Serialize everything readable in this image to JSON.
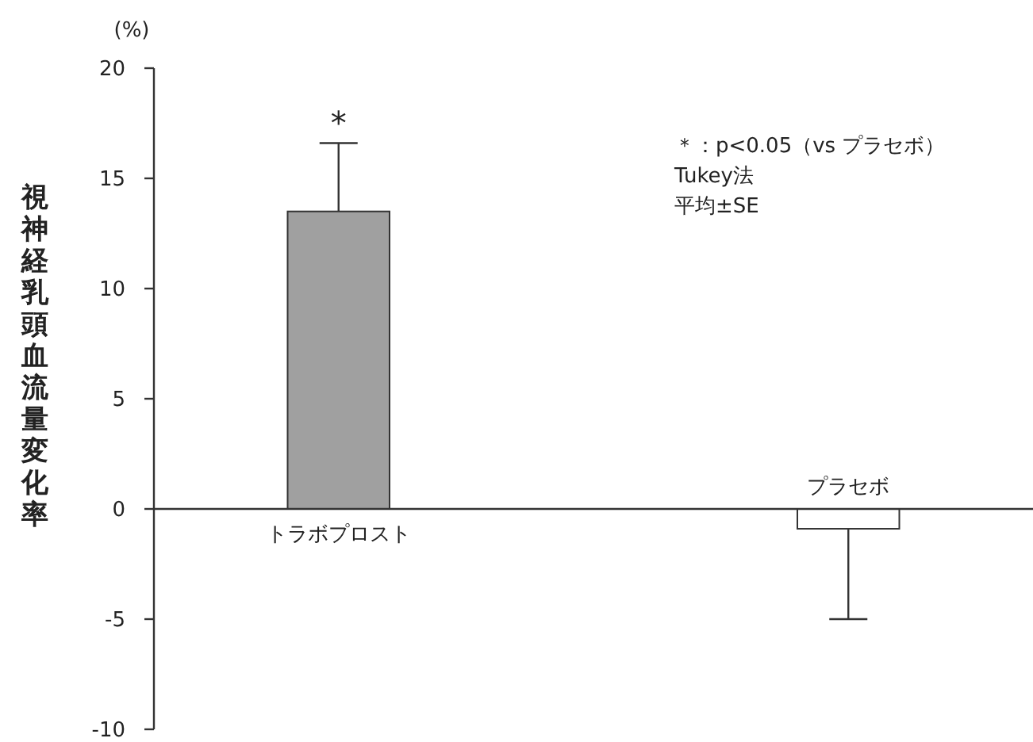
{
  "chart_data": {
    "type": "bar",
    "ylabel": "視神経乳頭血流量変化率",
    "categories": [
      "トラボプロスト",
      "プラセボ"
    ],
    "values": [
      13.5,
      -0.9
    ],
    "colors": [
      "#a0a0a0",
      "#ffffff"
    ],
    "errors": [
      [
        13.5,
        16.6
      ],
      [
        -5.0,
        -0.9
      ]
    ],
    "ylim": [
      -10,
      20
    ],
    "yticks": [
      -10,
      -5,
      0,
      5,
      10,
      15,
      20
    ],
    "annotations": [
      "(%)",
      "*",
      "＊：p<0.05（vs プラセボ）",
      "Tukey法",
      "平均±SE"
    ]
  }
}
